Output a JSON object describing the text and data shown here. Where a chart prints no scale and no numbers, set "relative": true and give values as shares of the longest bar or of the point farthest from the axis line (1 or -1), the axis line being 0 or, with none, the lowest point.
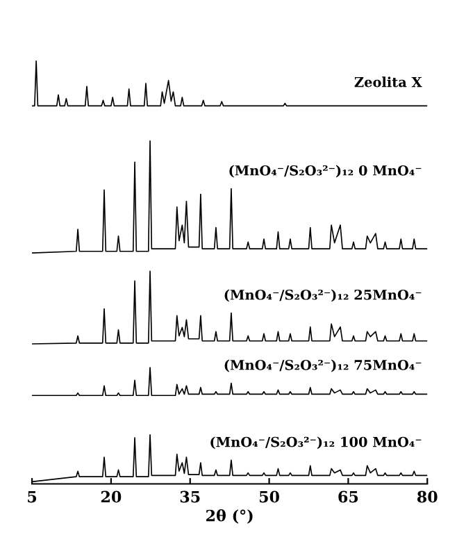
{
  "chart_data": {
    "type": "line",
    "relative": true,
    "xlabel": "2θ (°)",
    "xlim": [
      5,
      80
    ],
    "xticks": [
      5,
      20,
      35,
      50,
      65,
      80
    ],
    "legend": false,
    "grid": false,
    "series": [
      {
        "name": "Zeolita X",
        "color": "#000000",
        "x": [
          5,
          5.5,
          5.8,
          6.1,
          9.7,
          10,
          10.3,
          11.2,
          11.5,
          11.8,
          15.1,
          15.4,
          15.7,
          18.2,
          18.5,
          18.8,
          20,
          20.3,
          20.6,
          23.1,
          23.4,
          23.7,
          26.3,
          26.6,
          26.9,
          29.4,
          29.7,
          30.1,
          30.9,
          31.4,
          31.8,
          32.2,
          33.2,
          33.5,
          33.8,
          37.2,
          37.5,
          37.8,
          40.7,
          41,
          41.3,
          52.7,
          53,
          53.3,
          80
        ],
        "values": [
          0.894,
          0.894,
          1.0,
          0.894,
          0.894,
          0.92,
          0.894,
          0.894,
          0.911,
          0.894,
          0.894,
          0.94,
          0.894,
          0.894,
          0.907,
          0.894,
          0.894,
          0.914,
          0.894,
          0.894,
          0.934,
          0.894,
          0.894,
          0.947,
          0.894,
          0.894,
          0.927,
          0.9,
          0.954,
          0.905,
          0.927,
          0.894,
          0.894,
          0.914,
          0.894,
          0.894,
          0.907,
          0.894,
          0.894,
          0.904,
          0.894,
          0.894,
          0.9,
          0.894,
          0.894
        ]
      },
      {
        "name": "(MnO₄⁻/S₂O₃²⁻)₁₂ 0 MnO₄⁻",
        "color": "#000000",
        "x": [
          5,
          13.4,
          13.7,
          14,
          18.4,
          18.7,
          19,
          21.1,
          21.4,
          21.7,
          24.2,
          24.5,
          24.8,
          27.1,
          27.4,
          27.7,
          32.2,
          32.5,
          32.9,
          33.5,
          33.9,
          34.3,
          34.7,
          36.7,
          37,
          37.3,
          39.6,
          39.9,
          40.2,
          42.5,
          42.8,
          43.1,
          45.7,
          46,
          46.3,
          48.7,
          49,
          49.3,
          51.4,
          51.7,
          52,
          53.7,
          54,
          54.3,
          57.5,
          57.8,
          58.1,
          61.5,
          61.8,
          62.4,
          63.5,
          63.9,
          65.7,
          66,
          66.3,
          68.3,
          68.6,
          69.2,
          70.2,
          70.6,
          71.7,
          72,
          72.3,
          74.7,
          75,
          75.3,
          77.2,
          77.5,
          77.8,
          80
        ],
        "values": [
          0.546,
          0.55,
          0.602,
          0.55,
          0.55,
          0.695,
          0.55,
          0.55,
          0.586,
          0.55,
          0.55,
          0.761,
          0.55,
          0.55,
          0.811,
          0.556,
          0.556,
          0.655,
          0.575,
          0.612,
          0.57,
          0.668,
          0.56,
          0.56,
          0.685,
          0.556,
          0.556,
          0.606,
          0.556,
          0.556,
          0.698,
          0.556,
          0.556,
          0.572,
          0.556,
          0.556,
          0.579,
          0.556,
          0.556,
          0.596,
          0.556,
          0.556,
          0.579,
          0.556,
          0.556,
          0.606,
          0.556,
          0.556,
          0.612,
          0.57,
          0.612,
          0.556,
          0.556,
          0.572,
          0.556,
          0.556,
          0.586,
          0.57,
          0.592,
          0.556,
          0.556,
          0.572,
          0.556,
          0.556,
          0.579,
          0.556,
          0.556,
          0.579,
          0.556,
          0.556
        ]
      },
      {
        "name": "(MnO₄⁻/S₂O₃²⁻)₁₂ 25MnO₄⁻",
        "color": "#000000",
        "x": [
          5,
          13.4,
          13.7,
          14,
          18.4,
          18.7,
          19,
          21.1,
          21.4,
          21.7,
          24.2,
          24.5,
          24.8,
          27.1,
          27.4,
          27.7,
          32.2,
          32.5,
          32.9,
          33.5,
          33.9,
          34.3,
          34.7,
          36.7,
          37,
          37.3,
          39.6,
          39.9,
          40.2,
          42.5,
          42.8,
          43.1,
          45.7,
          46,
          46.3,
          48.7,
          49,
          49.3,
          51.4,
          51.7,
          52,
          53.7,
          54,
          54.3,
          57.5,
          57.8,
          58.1,
          61.5,
          61.8,
          62.4,
          63.5,
          63.9,
          65.7,
          66,
          66.3,
          68.3,
          68.6,
          69.2,
          70.2,
          70.6,
          71.7,
          72,
          72.3,
          74.7,
          75,
          75.3,
          77.2,
          77.5,
          77.8,
          80
        ],
        "values": [
          0.331,
          0.333,
          0.35,
          0.333,
          0.333,
          0.414,
          0.333,
          0.333,
          0.364,
          0.333,
          0.333,
          0.48,
          0.333,
          0.333,
          0.503,
          0.338,
          0.338,
          0.398,
          0.35,
          0.37,
          0.348,
          0.388,
          0.343,
          0.343,
          0.398,
          0.338,
          0.338,
          0.36,
          0.338,
          0.338,
          0.404,
          0.338,
          0.338,
          0.35,
          0.338,
          0.338,
          0.355,
          0.338,
          0.338,
          0.36,
          0.338,
          0.338,
          0.355,
          0.338,
          0.338,
          0.371,
          0.338,
          0.338,
          0.378,
          0.348,
          0.371,
          0.338,
          0.338,
          0.35,
          0.338,
          0.338,
          0.36,
          0.348,
          0.36,
          0.338,
          0.338,
          0.35,
          0.338,
          0.338,
          0.355,
          0.338,
          0.338,
          0.355,
          0.338,
          0.338
        ]
      },
      {
        "name": "(MnO₄⁻/S₂O₃²⁻)₁₂ 75MnO₄⁻",
        "color": "#000000",
        "x": [
          5,
          13.4,
          13.7,
          14,
          18.4,
          18.7,
          19,
          21.1,
          21.4,
          21.7,
          24.2,
          24.5,
          24.8,
          27.1,
          27.4,
          27.7,
          32.2,
          32.5,
          32.9,
          33.5,
          33.9,
          34.3,
          34.7,
          36.7,
          37,
          37.3,
          39.6,
          39.9,
          40.2,
          42.5,
          42.8,
          43.1,
          45.7,
          46,
          46.3,
          48.7,
          49,
          49.3,
          51.4,
          51.7,
          52,
          53.7,
          54,
          54.3,
          57.5,
          57.8,
          58.1,
          61.5,
          61.8,
          62.4,
          63.5,
          63.9,
          65.7,
          66,
          66.3,
          68.3,
          68.6,
          69.2,
          70.2,
          70.6,
          71.7,
          72,
          72.3,
          74.7,
          75,
          75.3,
          77.2,
          77.5,
          77.8,
          80
        ],
        "values": [
          0.209,
          0.209,
          0.215,
          0.209,
          0.209,
          0.232,
          0.209,
          0.209,
          0.215,
          0.209,
          0.209,
          0.245,
          0.209,
          0.209,
          0.275,
          0.209,
          0.209,
          0.235,
          0.212,
          0.225,
          0.212,
          0.232,
          0.212,
          0.212,
          0.228,
          0.212,
          0.212,
          0.218,
          0.212,
          0.212,
          0.238,
          0.212,
          0.212,
          0.218,
          0.212,
          0.212,
          0.218,
          0.212,
          0.212,
          0.222,
          0.212,
          0.212,
          0.218,
          0.212,
          0.212,
          0.228,
          0.212,
          0.212,
          0.225,
          0.215,
          0.222,
          0.212,
          0.212,
          0.218,
          0.212,
          0.212,
          0.225,
          0.215,
          0.222,
          0.212,
          0.212,
          0.218,
          0.212,
          0.212,
          0.218,
          0.212,
          0.212,
          0.218,
          0.212,
          0.212
        ]
      },
      {
        "name": "(MnO₄⁻/S₂O₃²⁻)₁₂ 100 MnO₄⁻",
        "color": "#000000",
        "x": [
          5,
          13.4,
          13.7,
          14,
          18.4,
          18.7,
          19,
          21.1,
          21.4,
          21.7,
          24.2,
          24.5,
          24.8,
          27.1,
          27.4,
          27.7,
          32.2,
          32.5,
          32.9,
          33.5,
          33.9,
          34.3,
          34.7,
          36.7,
          37,
          37.3,
          39.6,
          39.9,
          40.2,
          42.5,
          42.8,
          43.1,
          45.7,
          46,
          46.3,
          48.7,
          49,
          49.3,
          51.4,
          51.7,
          52,
          53.7,
          54,
          54.3,
          57.5,
          57.8,
          58.1,
          61.5,
          61.8,
          62.4,
          63.5,
          63.9,
          65.7,
          66,
          66.3,
          68.3,
          68.6,
          69.2,
          70.2,
          70.6,
          71.7,
          72,
          72.3,
          74.7,
          75,
          75.3,
          77.2,
          77.5,
          77.8,
          80
        ],
        "values": [
          0.005,
          0.017,
          0.03,
          0.017,
          0.017,
          0.063,
          0.017,
          0.017,
          0.033,
          0.017,
          0.017,
          0.109,
          0.017,
          0.017,
          0.116,
          0.02,
          0.02,
          0.07,
          0.03,
          0.05,
          0.025,
          0.063,
          0.022,
          0.022,
          0.05,
          0.02,
          0.02,
          0.033,
          0.02,
          0.02,
          0.056,
          0.02,
          0.02,
          0.026,
          0.02,
          0.02,
          0.026,
          0.02,
          0.02,
          0.036,
          0.02,
          0.02,
          0.026,
          0.02,
          0.02,
          0.043,
          0.02,
          0.02,
          0.036,
          0.026,
          0.033,
          0.02,
          0.02,
          0.026,
          0.02,
          0.02,
          0.043,
          0.026,
          0.036,
          0.02,
          0.02,
          0.026,
          0.02,
          0.02,
          0.026,
          0.02,
          0.02,
          0.03,
          0.02,
          0.02
        ]
      }
    ]
  }
}
